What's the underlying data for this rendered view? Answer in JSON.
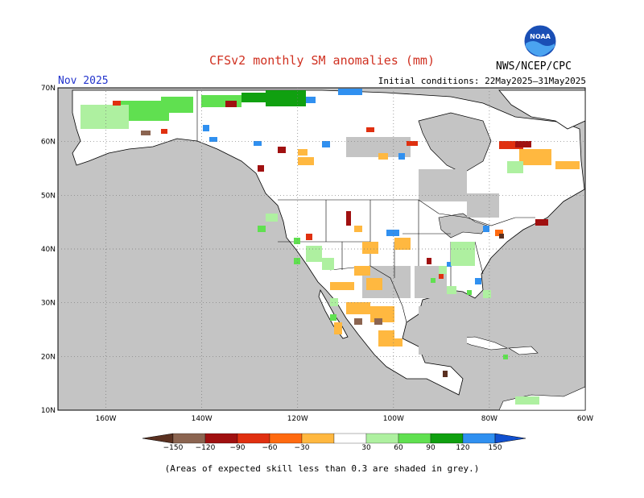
{
  "header": {
    "title": "CFSv2 monthly SM anomalies (mm)",
    "month": "Nov 2025",
    "agency": "NWS/NCEP/CPC",
    "initial_conditions": "Initial conditions: 22May2025–31May2025",
    "logo_text": "NOAA"
  },
  "map": {
    "lat_labels": [
      "70N",
      "60N",
      "50N",
      "40N",
      "30N",
      "20N",
      "10N"
    ],
    "lon_labels": [
      "160W",
      "140W",
      "120W",
      "100W",
      "80W",
      "60W"
    ],
    "grey_meaning": "Areas of expected skill less than 0.3 are shaded in grey."
  },
  "colorbar": {
    "labels": [
      "−150",
      "−120",
      "−90",
      "−60",
      "−30",
      "30",
      "60",
      "90",
      "120",
      "150"
    ],
    "colors": [
      "#5a3020",
      "#8b6450",
      "#a01010",
      "#e03010",
      "#ff6a10",
      "#ffb840",
      "#ffffff",
      "#aef0a0",
      "#60e050",
      "#10a010",
      "#3090f0",
      "#1050d0"
    ]
  },
  "footer": {
    "note": "(Areas of expected skill less than 0.3 are shaded in grey.)"
  }
}
